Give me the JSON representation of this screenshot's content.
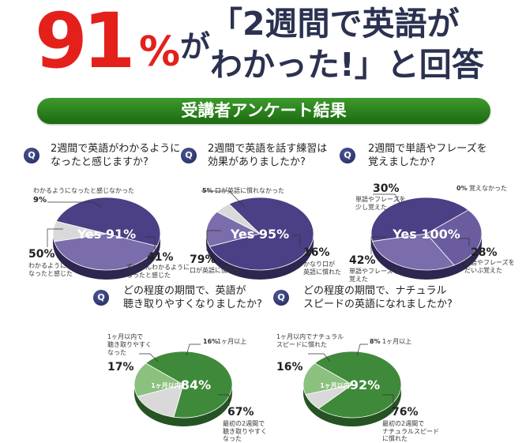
{
  "header": {
    "big_number": "91",
    "percent": "%",
    "ga": "が",
    "line1": "「2週間で英語が",
    "line2": "わかった!」と回答"
  },
  "banner": {
    "label": "受講者アンケート結果"
  },
  "q_mark": "Q",
  "surveys": [
    {
      "q_line1": "2週間で英語がわかるように",
      "q_line2": "なったと感じますか?",
      "center_label": "Yes 91%",
      "slices": [
        {
          "pct": "50%",
          "label1": "わかるように",
          "label2": "なったと感じた",
          "value": 50
        },
        {
          "pct": "41%",
          "label1": "ずいぶんわかるように",
          "label2": "なったと感じた",
          "value": 41
        },
        {
          "pct": "9%",
          "label1": "わかるようになったと感じなかった",
          "label2": "",
          "value": 9
        }
      ]
    },
    {
      "q_line1": "2週間で英語を話す練習は",
      "q_line2": "効果がありましたか?",
      "center_label": "Yes 95%",
      "slices": [
        {
          "pct": "79%",
          "label1": "口が英語に慣れた",
          "label2": "",
          "value": 79
        },
        {
          "pct": "16%",
          "label1": "かなり口が",
          "label2": "英語に慣れた",
          "value": 16
        },
        {
          "pct": "5%",
          "label1": "口が英語に慣れなかった",
          "label2": "",
          "value": 5
        }
      ]
    },
    {
      "q_line1": "2週間で単語やフレーズを",
      "q_line2": "覚えましたか?",
      "center_label": "Yes 100%",
      "slices": [
        {
          "pct": "30%",
          "label1": "単語やフレーズを",
          "label2": "少し覚えた",
          "value": 30
        },
        {
          "pct": "42%",
          "label1": "単語やフレーズを",
          "label2": "覚えた",
          "value": 42
        },
        {
          "pct": "28%",
          "label1": "単語やフレーズを",
          "label2": "だいぶ覚えた",
          "value": 28
        },
        {
          "pct": "0%",
          "label1": "覚えなかった",
          "label2": "",
          "value": 0
        }
      ]
    },
    {
      "q_line1": "どの程度の期間で、英語が",
      "q_line2": "聴き取りやすくなりましたか?",
      "center_pre": "1ヶ月以内",
      "center_pct": "84%",
      "slices": [
        {
          "pct": "17%",
          "label1": "1ヶ月以内で",
          "label2": "聴き取りやすく",
          "label3": "なった",
          "value": 17
        },
        {
          "pct": "67%",
          "label1": "最初の2週間で",
          "label2": "聴き取りやすく",
          "label3": "なった",
          "value": 67
        },
        {
          "pct": "16%",
          "label1": "1ヶ月以上",
          "label2": "",
          "label3": "",
          "value": 16
        }
      ]
    },
    {
      "q_line1": "どの程度の期間で、ナチュラル",
      "q_line2": "スピードの英語になれましたか?",
      "center_pre": "1ヶ月以内",
      "center_pct": "92%",
      "slices": [
        {
          "pct": "16%",
          "label1": "1ヶ月以内でナチュラル",
          "label2": "スピードに慣れた",
          "label3": "",
          "value": 16
        },
        {
          "pct": "76%",
          "label1": "最初の2週間で",
          "label2": "ナチュラルスピード",
          "label3": "に慣れた",
          "value": 76
        },
        {
          "pct": "8%",
          "label1": "1ヶ月以上",
          "label2": "",
          "label3": "",
          "value": 8
        }
      ]
    }
  ],
  "chart_data": [
    {
      "type": "pie",
      "title": "2週間で英語がわかるようになったと感じますか?",
      "categories": [
        "わかるようになったと感じた",
        "ずいぶんわかるようになったと感じた",
        "わかるようになったと感じなかった"
      ],
      "values": [
        50,
        41,
        9
      ]
    },
    {
      "type": "pie",
      "title": "2週間で英語を話す練習は効果がありましたか?",
      "categories": [
        "口が英語に慣れた",
        "かなり口が英語に慣れた",
        "口が英語に慣れなかった"
      ],
      "values": [
        79,
        16,
        5
      ]
    },
    {
      "type": "pie",
      "title": "2週間で単語やフレーズを覚えましたか?",
      "categories": [
        "単語やフレーズを少し覚えた",
        "単語やフレーズを覚えた",
        "単語やフレーズをだいぶ覚えた",
        "覚えなかった"
      ],
      "values": [
        30,
        42,
        28,
        0
      ]
    },
    {
      "type": "pie",
      "title": "どの程度の期間で、英語が聴き取りやすくなりましたか?",
      "categories": [
        "1ヶ月以内で聴き取りやすくなった",
        "最初の2週間で聴き取りやすくなった",
        "1ヶ月以上"
      ],
      "values": [
        17,
        67,
        16
      ]
    },
    {
      "type": "pie",
      "title": "どの程度の期間で、ナチュラルスピードの英語になれましたか?",
      "categories": [
        "1ヶ月以内でナチュラルスピードに慣れた",
        "最初の2週間でナチュラルスピードに慣れた",
        "1ヶ月以上"
      ],
      "values": [
        16,
        76,
        8
      ]
    }
  ],
  "colors": {
    "red": "#e4201b",
    "navy": "#2b3150",
    "purple_dark": "#4b3f85",
    "purple_light": "#7b6cab",
    "green_dark": "#3f8a3a",
    "green_light": "#8cc07f",
    "gray": "#d9d9d9"
  }
}
